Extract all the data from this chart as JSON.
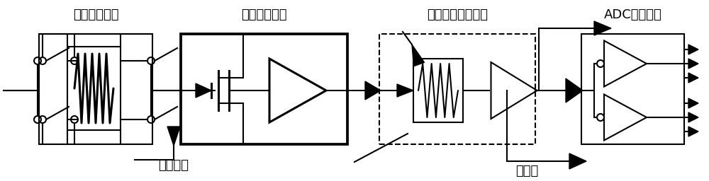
{
  "bg_color": "#ffffff",
  "line_color": "#000000",
  "labels": {
    "passive_network": "无源衰减网络",
    "impedance_conv": "阻抗变换电路",
    "prog_gain": "程控可变增益电路",
    "adc_driver": "ADC驱动电路",
    "bias_adj": "偏置调节",
    "trigger": "去触发"
  },
  "figsize": [
    10.0,
    2.56
  ],
  "dpi": 100
}
